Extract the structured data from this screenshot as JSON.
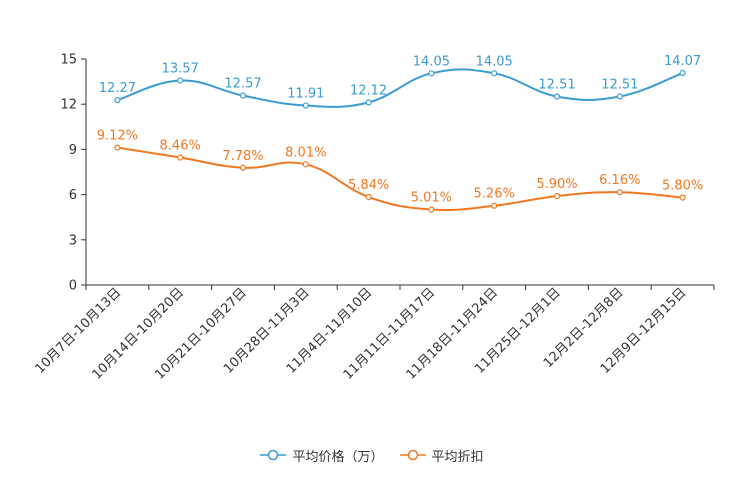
{
  "chart_data": {
    "type": "line",
    "categories": [
      "10月7日-10月13日",
      "10月14日-10月20日",
      "10月21日-10月27日",
      "10月28日-11月3日",
      "11月4日-11月10日",
      "11月11日-11月17日",
      "11月18日-11月24日",
      "11月25日-12月1日",
      "12月2日-12月8日",
      "12月9日-12月15日"
    ],
    "series": [
      {
        "name": "平均价格（万）",
        "color": "#3a9cd0",
        "values": [
          12.27,
          13.57,
          12.57,
          11.91,
          12.12,
          14.05,
          14.05,
          12.51,
          12.51,
          14.07
        ],
        "labels": [
          "12.27",
          "13.57",
          "12.57",
          "11.91",
          "12.12",
          "14.05",
          "14.05",
          "12.51",
          "12.51",
          "14.07"
        ]
      },
      {
        "name": "平均折扣",
        "color": "#f07820",
        "values": [
          9.12,
          8.46,
          7.78,
          8.01,
          5.84,
          5.01,
          5.26,
          5.9,
          6.16,
          5.8
        ],
        "labels": [
          "9.12%",
          "8.46%",
          "7.78%",
          "8.01%",
          "5.84%",
          "5.01%",
          "5.26%",
          "5.90%",
          "6.16%",
          "5.80%"
        ]
      }
    ],
    "ylim": [
      0,
      15
    ],
    "yticks": [
      0,
      3,
      6,
      9,
      12,
      15
    ],
    "ytick_labels": [
      "0",
      "3",
      "6",
      "9",
      "12",
      "15"
    ],
    "title": "",
    "xlabel": "",
    "ylabel": "",
    "grid": false,
    "legend_position": "bottom-center"
  }
}
